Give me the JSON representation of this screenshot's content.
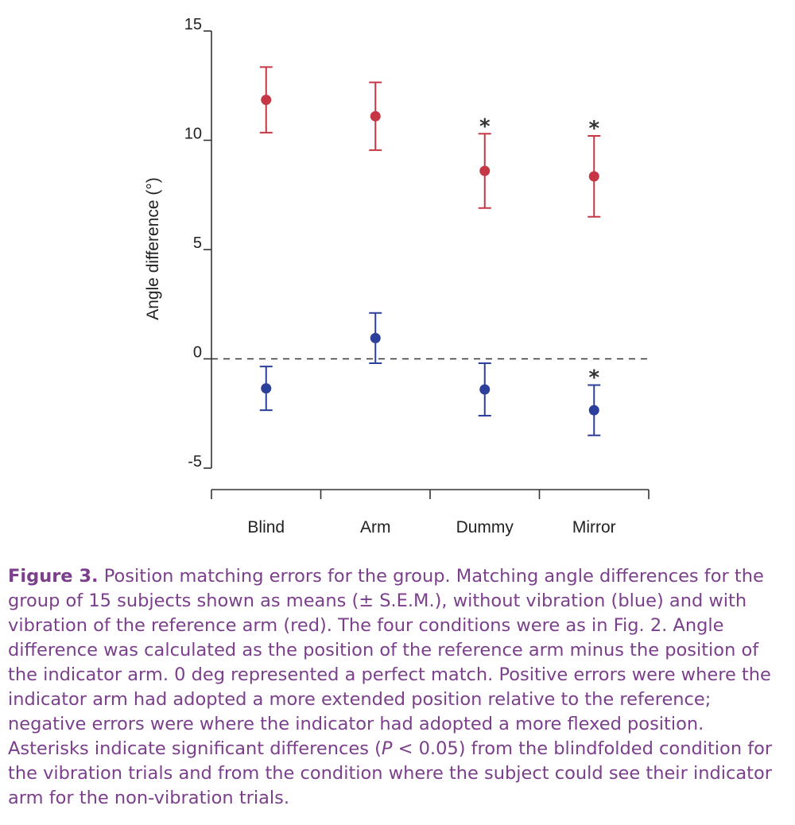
{
  "chart_data": {
    "type": "scatter",
    "ylabel": "Angle difference (°)",
    "xlabel": "",
    "categories": [
      "Blind",
      "Arm",
      "Dummy",
      "Mirror"
    ],
    "ylim": [
      -5,
      15
    ],
    "yticks": [
      "15",
      "10",
      "5",
      "0",
      "-5"
    ],
    "ytick_values": [
      15,
      10,
      5,
      0,
      -5
    ],
    "reference_line": {
      "y": 0,
      "style": "dashed"
    },
    "series": [
      {
        "color": "#c63746",
        "values": [
          11.85,
          11.1,
          8.6,
          8.35
        ],
        "error": [
          1.5,
          1.55,
          1.7,
          1.85
        ],
        "significant": [
          false,
          false,
          true,
          true
        ]
      },
      {
        "color": "#2c3f9a",
        "values": [
          -1.35,
          0.95,
          -1.4,
          -2.35
        ],
        "error": [
          1.0,
          1.15,
          1.2,
          1.15
        ],
        "significant": [
          false,
          false,
          false,
          true
        ]
      }
    ],
    "significance_marker": "*"
  },
  "caption": {
    "label": "Figure 3.",
    "text_1": " Position matching errors for the group. Matching angle differences for the group of 15 subjects shown as means (± S.E.M.), without vibration (blue) and with vibration of the reference arm (red). The four conditions were as in Fig. 2. Angle difference was calculated as the position of the reference arm minus the position of the indicator arm. 0 deg represented a perfect match. Positive errors were where the indicator arm had adopted a more extended position relative to the reference; negative errors were where the indicator had adopted a more flexed position. Asterisks indicate significant differences (",
    "p_symbol": "P",
    "text_2": " < 0.05) from the blindfolded condition for the vibration trials and from the condition where the subject could see their indicator arm for the non-vibration trials."
  }
}
